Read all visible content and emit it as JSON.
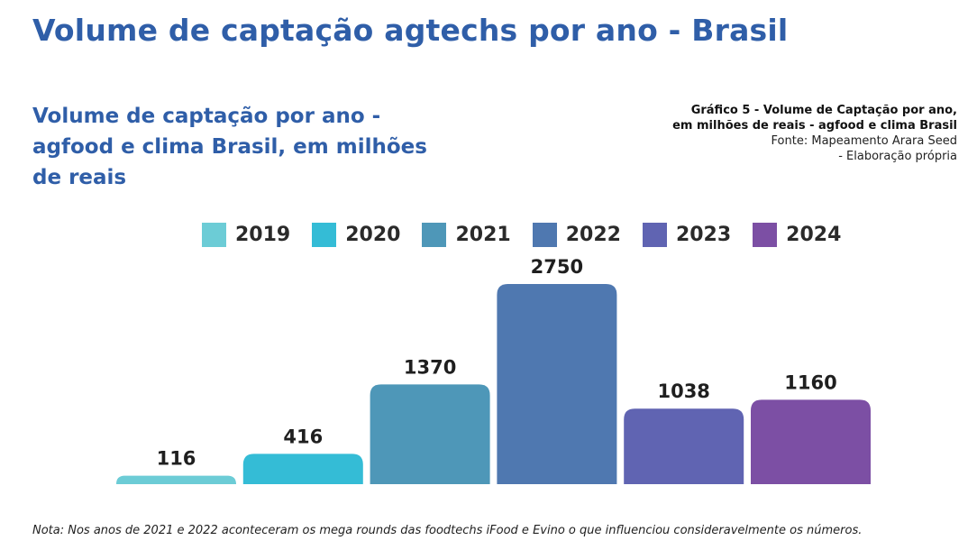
{
  "page": {
    "title": "Volume de captação agtechs por ano - Brasil",
    "footnote": "Nota: Nos anos de 2021 e 2022 aconteceram os mega rounds das foodtechs iFood e Evino o que influenciou consideravelmente os números."
  },
  "chart_subtitle": "Volume de captação por ano - agfood e clima Brasil, em milhões de reais",
  "caption": {
    "line1": "Gráfico 5 - Volume de Captação por ano,",
    "line2": "em milhões de reais - agfood e clima Brasil",
    "line3": "Fonte: Mapeamento Arara Seed",
    "line4": "- Elaboração própria"
  },
  "legend": [
    {
      "label": "2019",
      "color": "#6cccd6"
    },
    {
      "label": "2020",
      "color": "#34bcd6"
    },
    {
      "label": "2021",
      "color": "#4e97b8"
    },
    {
      "label": "2022",
      "color": "#4f78b0"
    },
    {
      "label": "2023",
      "color": "#6064b2"
    },
    {
      "label": "2024",
      "color": "#7c4fa4"
    }
  ],
  "chart_data": {
    "type": "bar",
    "categories": [
      "2019",
      "2020",
      "2021",
      "2022",
      "2023",
      "2024"
    ],
    "values": [
      116,
      416,
      1370,
      2750,
      1038,
      1160
    ],
    "colors": [
      "#6cccd6",
      "#34bcd6",
      "#4e97b8",
      "#4f78b0",
      "#6064b2",
      "#7c4fa4"
    ],
    "title": "Volume de captação por ano - agfood e clima Brasil, em milhões de reais",
    "xlabel": "",
    "ylabel": "",
    "ylim": [
      0,
      2750
    ],
    "grid": false,
    "legend": "top-center",
    "data_labels": true
  }
}
